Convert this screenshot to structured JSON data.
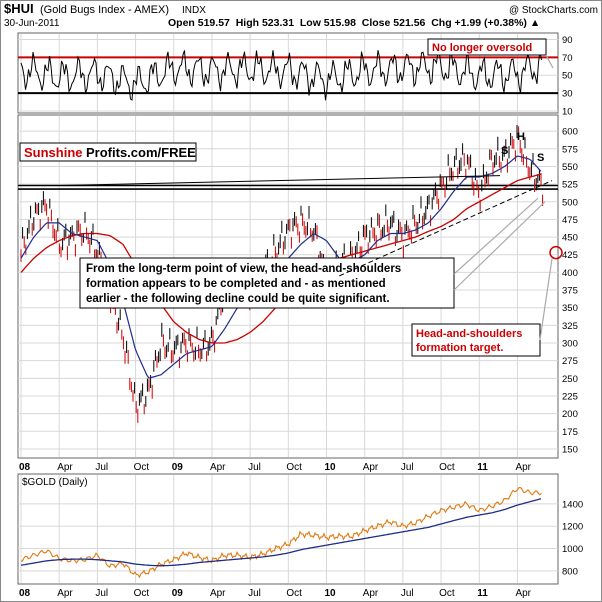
{
  "header": {
    "symbol": "$HUI",
    "name": "(Gold Bugs Index - AMEX)",
    "type": "INDX",
    "copyright": "@ StockCharts.com",
    "date": "30-Jun-2011",
    "ohlc_text": "Open 519.57  High 523.31  Low 515.98  Close 521.56  Chg +1.99 (+0.38%) ▲"
  },
  "branding": {
    "part1": "Sunshine",
    "part2": "Profits.com/FREE"
  },
  "colors": {
    "accent_red": "#cc0000",
    "price_black": "#000000",
    "price_red": "#cc0000",
    "ma_short": "#1f2d8a",
    "ma_long": "#cc0000",
    "gold_line": "#e07a10",
    "gold_ma": "#1f2d8a",
    "rsi_line": "#000000",
    "grid": "#d8d8d8"
  },
  "annotations": {
    "oversold": "No longer oversold",
    "main_note": [
      "From the long-term point of view, the head-and-shoulders",
      "formation appears to be completed and - as mentioned",
      "earlier - the following decline could be quite significant."
    ],
    "target_note": [
      "Head-and-shoulders",
      "formation target."
    ],
    "hs_labels": [
      "S",
      "H",
      "S"
    ]
  },
  "chart_data": [
    {
      "type": "line",
      "title": "RSI",
      "ylim": [
        10,
        95
      ],
      "y_ticks": [
        10,
        30,
        50,
        70,
        90
      ],
      "reference_lines": [
        70,
        30
      ],
      "grid": true,
      "x": [
        "2008-01",
        "2008-04",
        "2008-07",
        "2008-10",
        "2009-01",
        "2009-04",
        "2009-07",
        "2009-10",
        "2010-01",
        "2010-04",
        "2010-07",
        "2010-10",
        "2011-01",
        "2011-04",
        "2011-06"
      ],
      "values": [
        56,
        48,
        52,
        40,
        58,
        55,
        57,
        55,
        45,
        55,
        58,
        60,
        50,
        52,
        62
      ]
    },
    {
      "type": "candlestick",
      "title": "$HUI (Gold Bugs Index - AMEX)",
      "ylim": [
        140,
        620
      ],
      "y_ticks": [
        150,
        175,
        200,
        225,
        250,
        275,
        300,
        325,
        350,
        375,
        400,
        425,
        450,
        475,
        500,
        525,
        550,
        575,
        600
      ],
      "grid": true,
      "horizontal_lines": [
        518,
        523
      ],
      "x_tick_labels": [
        "08",
        "Apr",
        "Jul",
        "Oct",
        "09",
        "Apr",
        "Jul",
        "Oct",
        "10",
        "Apr",
        "Jul",
        "Oct",
        "11",
        "Apr"
      ],
      "x": [
        "2008-01",
        "2008-02",
        "2008-03",
        "2008-04",
        "2008-05",
        "2008-06",
        "2008-07",
        "2008-08",
        "2008-09",
        "2008-10",
        "2008-11",
        "2008-12",
        "2009-01",
        "2009-02",
        "2009-03",
        "2009-04",
        "2009-05",
        "2009-06",
        "2009-07",
        "2009-08",
        "2009-09",
        "2009-10",
        "2009-11",
        "2009-12",
        "2010-01",
        "2010-02",
        "2010-03",
        "2010-04",
        "2010-05",
        "2010-06",
        "2010-07",
        "2010-08",
        "2010-09",
        "2010-10",
        "2010-11",
        "2010-12",
        "2011-01",
        "2011-02",
        "2011-03",
        "2011-04",
        "2011-05",
        "2011-06"
      ],
      "series": [
        {
          "name": "Close",
          "values": [
            430,
            480,
            495,
            440,
            450,
            460,
            430,
            370,
            310,
            210,
            230,
            300,
            290,
            300,
            290,
            300,
            380,
            380,
            370,
            400,
            430,
            460,
            470,
            460,
            390,
            410,
            420,
            450,
            460,
            470,
            450,
            470,
            490,
            520,
            550,
            560,
            510,
            560,
            565,
            590,
            545,
            521.56
          ]
        },
        {
          "name": "MA50",
          "values": [
            420,
            450,
            470,
            470,
            455,
            450,
            445,
            410,
            360,
            290,
            250,
            255,
            270,
            285,
            290,
            295,
            320,
            350,
            370,
            380,
            400,
            420,
            440,
            455,
            445,
            420,
            415,
            425,
            445,
            455,
            455,
            460,
            470,
            490,
            515,
            535,
            535,
            540,
            550,
            565,
            560,
            540
          ]
        },
        {
          "name": "MA200",
          "values": [
            400,
            420,
            435,
            445,
            452,
            455,
            455,
            452,
            440,
            410,
            380,
            355,
            330,
            315,
            305,
            300,
            300,
            305,
            315,
            330,
            350,
            370,
            390,
            405,
            415,
            420,
            425,
            430,
            435,
            440,
            445,
            450,
            458,
            465,
            475,
            490,
            500,
            510,
            520,
            530,
            535,
            540
          ]
        }
      ],
      "target_value": 428
    },
    {
      "type": "line",
      "title": "$GOLD (Daily)",
      "ylim": [
        700,
        1650
      ],
      "y_ticks": [
        800,
        1000,
        1200,
        1400
      ],
      "grid": true,
      "x_tick_labels": [
        "08",
        "Apr",
        "Jul",
        "Oct",
        "09",
        "Apr",
        "Jul",
        "Oct",
        "10",
        "Apr",
        "Jul",
        "Oct",
        "11",
        "Apr"
      ],
      "x": [
        "2008-01",
        "2008-02",
        "2008-03",
        "2008-04",
        "2008-05",
        "2008-06",
        "2008-07",
        "2008-08",
        "2008-09",
        "2008-10",
        "2008-11",
        "2008-12",
        "2009-01",
        "2009-02",
        "2009-03",
        "2009-04",
        "2009-05",
        "2009-06",
        "2009-07",
        "2009-08",
        "2009-09",
        "2009-10",
        "2009-11",
        "2009-12",
        "2010-01",
        "2010-02",
        "2010-03",
        "2010-04",
        "2010-05",
        "2010-06",
        "2010-07",
        "2010-08",
        "2010-09",
        "2010-10",
        "2010-11",
        "2010-12",
        "2011-01",
        "2011-02",
        "2011-03",
        "2011-04",
        "2011-05",
        "2011-06"
      ],
      "series": [
        {
          "name": "$GOLD",
          "values": [
            900,
            940,
            980,
            910,
            890,
            900,
            940,
            840,
            870,
            760,
            790,
            860,
            900,
            960,
            920,
            890,
            940,
            940,
            920,
            950,
            1000,
            1040,
            1130,
            1120,
            1100,
            1110,
            1110,
            1160,
            1200,
            1240,
            1200,
            1230,
            1290,
            1340,
            1370,
            1400,
            1340,
            1380,
            1430,
            1540,
            1500,
            1500
          ]
        },
        {
          "name": "MA",
          "values": [
            850,
            870,
            890,
            900,
            905,
            905,
            900,
            890,
            880,
            860,
            850,
            845,
            850,
            860,
            875,
            885,
            895,
            905,
            915,
            925,
            940,
            960,
            990,
            1010,
            1030,
            1050,
            1070,
            1090,
            1110,
            1130,
            1150,
            1170,
            1190,
            1220,
            1250,
            1280,
            1300,
            1320,
            1350,
            1390,
            1420,
            1450
          ]
        }
      ]
    }
  ]
}
